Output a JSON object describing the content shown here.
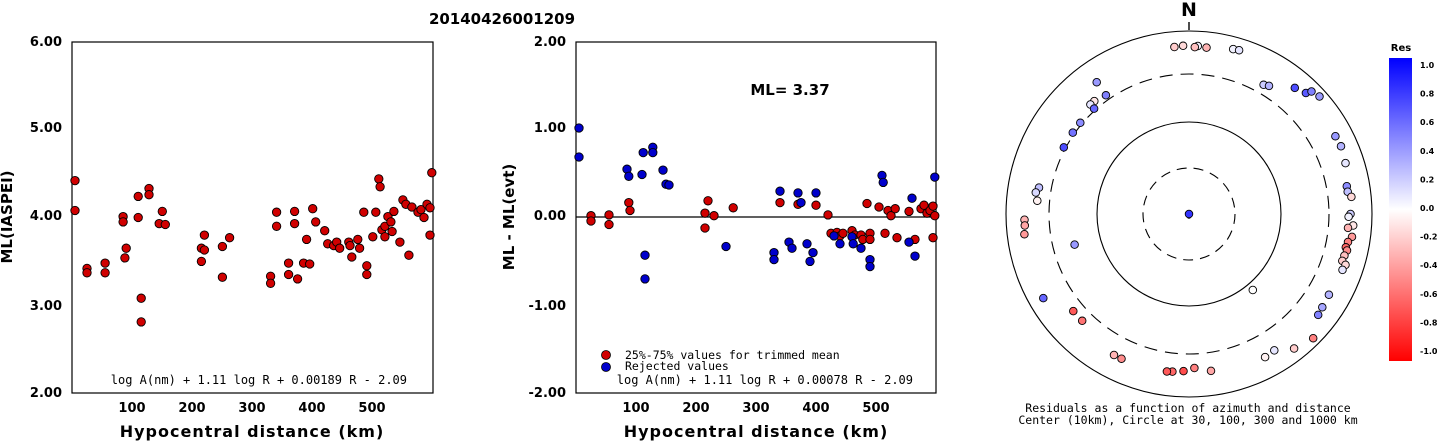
{
  "title": "20140426001209",
  "chart_data": [
    {
      "type": "scatter",
      "name": "left",
      "xlabel": "Hypocentral distance (km)",
      "ylabel": "ML(IASPEI)",
      "xlim": [
        0,
        600
      ],
      "ylim": [
        2.0,
        6.0
      ],
      "xticks": [
        "100",
        "200",
        "300",
        "400",
        "500"
      ],
      "yticks": [
        "2.00",
        "3.00",
        "4.00",
        "5.00",
        "6.00"
      ],
      "formula": "log A(nm) + 1.11 log R + 0.00189 R - 2.09",
      "marker_color": "#d00000",
      "points": [
        [
          5,
          4.42
        ],
        [
          5,
          4.08
        ],
        [
          25,
          3.42
        ],
        [
          25,
          3.37
        ],
        [
          55,
          3.48
        ],
        [
          55,
          3.37
        ],
        [
          85,
          4.01
        ],
        [
          85,
          3.95
        ],
        [
          90,
          3.65
        ],
        [
          88,
          3.54
        ],
        [
          110,
          4.24
        ],
        [
          110,
          4.0
        ],
        [
          115,
          3.08
        ],
        [
          115,
          2.81
        ],
        [
          128,
          4.33
        ],
        [
          128,
          4.26
        ],
        [
          145,
          3.93
        ],
        [
          150,
          4.07
        ],
        [
          155,
          3.92
        ],
        [
          215,
          3.65
        ],
        [
          220,
          3.8
        ],
        [
          220,
          3.63
        ],
        [
          215,
          3.5
        ],
        [
          250,
          3.67
        ],
        [
          250,
          3.32
        ],
        [
          262,
          3.77
        ],
        [
          330,
          3.33
        ],
        [
          330,
          3.25
        ],
        [
          340,
          4.06
        ],
        [
          340,
          3.9
        ],
        [
          360,
          3.48
        ],
        [
          360,
          3.35
        ],
        [
          370,
          4.07
        ],
        [
          370,
          3.93
        ],
        [
          375,
          3.3
        ],
        [
          385,
          3.48
        ],
        [
          390,
          3.75
        ],
        [
          395,
          3.47
        ],
        [
          400,
          4.1
        ],
        [
          405,
          3.95
        ],
        [
          420,
          3.85
        ],
        [
          425,
          3.7
        ],
        [
          435,
          3.68
        ],
        [
          440,
          3.72
        ],
        [
          445,
          3.65
        ],
        [
          460,
          3.72
        ],
        [
          462,
          3.68
        ],
        [
          465,
          3.55
        ],
        [
          475,
          3.75
        ],
        [
          478,
          3.65
        ],
        [
          485,
          4.06
        ],
        [
          490,
          3.45
        ],
        [
          490,
          3.35
        ],
        [
          500,
          3.78
        ],
        [
          505,
          4.06
        ],
        [
          510,
          4.44
        ],
        [
          512,
          4.35
        ],
        [
          515,
          3.86
        ],
        [
          520,
          3.78
        ],
        [
          520,
          3.9
        ],
        [
          525,
          4.01
        ],
        [
          530,
          3.95
        ],
        [
          532,
          3.84
        ],
        [
          535,
          4.07
        ],
        [
          545,
          3.72
        ],
        [
          550,
          4.2
        ],
        [
          555,
          4.15
        ],
        [
          560,
          3.57
        ],
        [
          565,
          4.12
        ],
        [
          575,
          4.06
        ],
        [
          580,
          4.09
        ],
        [
          585,
          4.0
        ],
        [
          590,
          4.15
        ],
        [
          595,
          4.11
        ],
        [
          595,
          3.8
        ],
        [
          598,
          4.51
        ]
      ]
    },
    {
      "type": "scatter",
      "name": "middle",
      "xlabel": "Hypocentral distance (km)",
      "ylabel": "ML - ML(evt)",
      "xlim": [
        0,
        600
      ],
      "ylim": [
        -2.0,
        2.0
      ],
      "xticks": [
        "100",
        "200",
        "300",
        "400",
        "500"
      ],
      "yticks": [
        "-2.00",
        "-1.00",
        "0.00",
        "1.00",
        "2.00"
      ],
      "ml_label": "ML= 3.37",
      "legend": [
        {
          "label": "25%-75% values for trimmed mean",
          "color": "#d00000"
        },
        {
          "label": "Rejected values",
          "color": "#0000cc"
        }
      ],
      "formula": "log A(nm) + 1.11 log R + 0.00078 R - 2.09",
      "series": [
        {
          "name": "25%-75% values for trimmed mean",
          "color": "#d00000",
          "points": [
            [
              25,
              0.02
            ],
            [
              25,
              -0.04
            ],
            [
              55,
              0.03
            ],
            [
              55,
              -0.08
            ],
            [
              88,
              0.17
            ],
            [
              90,
              0.08
            ],
            [
              215,
              0.05
            ],
            [
              220,
              0.19
            ],
            [
              215,
              -0.12
            ],
            [
              230,
              0.02
            ],
            [
              262,
              0.11
            ],
            [
              340,
              0.17
            ],
            [
              370,
              0.15
            ],
            [
              400,
              0.14
            ],
            [
              420,
              0.03
            ],
            [
              425,
              -0.18
            ],
            [
              435,
              -0.17
            ],
            [
              440,
              -0.21
            ],
            [
              445,
              -0.18
            ],
            [
              460,
              -0.15
            ],
            [
              465,
              -0.2
            ],
            [
              475,
              -0.2
            ],
            [
              478,
              -0.25
            ],
            [
              485,
              0.16
            ],
            [
              490,
              -0.18
            ],
            [
              490,
              -0.25
            ],
            [
              505,
              0.12
            ],
            [
              515,
              -0.18
            ],
            [
              520,
              0.08
            ],
            [
              525,
              0.02
            ],
            [
              532,
              0.1
            ],
            [
              535,
              -0.23
            ],
            [
              555,
              0.07
            ],
            [
              565,
              -0.25
            ],
            [
              575,
              0.1
            ],
            [
              580,
              0.14
            ],
            [
              585,
              0.05
            ],
            [
              590,
              0.08
            ],
            [
              595,
              0.13
            ],
            [
              595,
              -0.23
            ],
            [
              598,
              0.02
            ]
          ]
        },
        {
          "name": "Rejected values",
          "color": "#0000cc",
          "points": [
            [
              5,
              1.02
            ],
            [
              5,
              0.69
            ],
            [
              85,
              0.55
            ],
            [
              88,
              0.47
            ],
            [
              110,
              0.49
            ],
            [
              112,
              0.74
            ],
            [
              115,
              -0.7
            ],
            [
              115,
              -0.43
            ],
            [
              128,
              0.8
            ],
            [
              128,
              0.74
            ],
            [
              145,
              0.54
            ],
            [
              150,
              0.38
            ],
            [
              155,
              0.37
            ],
            [
              250,
              -0.33
            ],
            [
              330,
              -0.4
            ],
            [
              330,
              -0.48
            ],
            [
              340,
              0.3
            ],
            [
              355,
              -0.28
            ],
            [
              360,
              -0.35
            ],
            [
              370,
              0.28
            ],
            [
              375,
              0.17
            ],
            [
              385,
              -0.3
            ],
            [
              390,
              -0.5
            ],
            [
              395,
              -0.4
            ],
            [
              400,
              0.28
            ],
            [
              430,
              -0.21
            ],
            [
              440,
              -0.3
            ],
            [
              460,
              -0.22
            ],
            [
              462,
              -0.3
            ],
            [
              475,
              -0.35
            ],
            [
              490,
              -0.48
            ],
            [
              490,
              -0.56
            ],
            [
              510,
              0.48
            ],
            [
              512,
              0.4
            ],
            [
              555,
              -0.28
            ],
            [
              560,
              0.22
            ],
            [
              565,
              -0.44
            ],
            [
              598,
              0.46
            ]
          ]
        }
      ]
    },
    {
      "type": "scatter",
      "name": "polar",
      "north_label": "N",
      "caption_1": "Residuals as a function of azimuth and distance",
      "caption_2": "Center (10km), Circle at 30, 100, 300 and 1000 km",
      "colorbar_title": "Res",
      "colorbar_ticks": [
        "1.0",
        "0.8",
        "0.6",
        "0.4",
        "0.2",
        "0.0",
        "-0.2",
        "-0.4",
        "-0.6",
        "-0.8",
        "-1.0"
      ],
      "color_scale": {
        "positive": "#0000ff",
        "zero": "#ffffff",
        "negative": "#ff0000"
      },
      "note": "points are [azimuth_deg, distance_km, residual]",
      "points": [
        [
          355,
          750,
          -0.2
        ],
        [
          358,
          760,
          -0.15
        ],
        [
          3,
          760,
          0.05
        ],
        [
          2,
          740,
          -0.25
        ],
        [
          6,
          745,
          -0.3
        ],
        [
          15,
          800,
          0.05
        ],
        [
          17,
          810,
          0.1
        ],
        [
          325,
          640,
          0.4
        ],
        [
          320,
          420,
          -0.1
        ],
        [
          318,
          420,
          0.1
        ],
        [
          325,
          380,
          0.5
        ],
        [
          318,
          330,
          0.6
        ],
        [
          310,
          330,
          0.45
        ],
        [
          305,
          330,
          0.55
        ],
        [
          298,
          330,
          0.7
        ],
        [
          280,
          500,
          0.25
        ],
        [
          278,
          540,
          0.15
        ],
        [
          275,
          500,
          -0.05
        ],
        [
          268,
          700,
          -0.3
        ],
        [
          266,
          700,
          -0.35
        ],
        [
          263,
          720,
          -0.4
        ],
        [
          255,
          210,
          0.4
        ],
        [
          30,
          450,
          0.2
        ],
        [
          32,
          480,
          0.3
        ],
        [
          40,
          700,
          0.7
        ],
        [
          44,
          760,
          0.65
        ],
        [
          45,
          840,
          0.5
        ],
        [
          48,
          880,
          0.4
        ],
        [
          62,
          720,
          0.4
        ],
        [
          66,
          730,
          0.3
        ],
        [
          72,
          700,
          0.1
        ],
        [
          80,
          630,
          0.45
        ],
        [
          82,
          630,
          0.25
        ],
        [
          84,
          680,
          -0.15
        ],
        [
          90,
          650,
          0.2
        ],
        [
          91,
          620,
          0.05
        ],
        [
          94,
          700,
          -0.1
        ],
        [
          95,
          620,
          -0.3
        ],
        [
          98,
          700,
          -0.4
        ],
        [
          100,
          650,
          -0.5
        ],
        [
          102,
          630,
          -0.6
        ],
        [
          103,
          660,
          -0.45
        ],
        [
          105,
          640,
          -0.25
        ],
        [
          107,
          630,
          -0.2
        ],
        [
          108,
          700,
          -0.15
        ],
        [
          110,
          680,
          0.1
        ],
        [
          140,
          130,
          0.0
        ],
        [
          120,
          650,
          0.3
        ],
        [
          125,
          670,
          0.35
        ],
        [
          128,
          690,
          0.5
        ],
        [
          135,
          880,
          -0.5
        ],
        [
          142,
          800,
          -0.2
        ],
        [
          148,
          640,
          0.1
        ],
        [
          152,
          660,
          -0.05
        ],
        [
          178,
          530,
          -0.5
        ],
        [
          182,
          580,
          -0.7
        ],
        [
          186,
          600,
          -0.6
        ],
        [
          188,
          610,
          -0.65
        ],
        [
          172,
          600,
          -0.35
        ],
        [
          225,
          480,
          -0.55
        ],
        [
          230,
          480,
          -0.65
        ],
        [
          205,
          620,
          -0.45
        ],
        [
          208,
          620,
          -0.3
        ],
        [
          240,
          760,
          0.6
        ],
        [
          0,
          0,
          0.8
        ]
      ]
    }
  ]
}
